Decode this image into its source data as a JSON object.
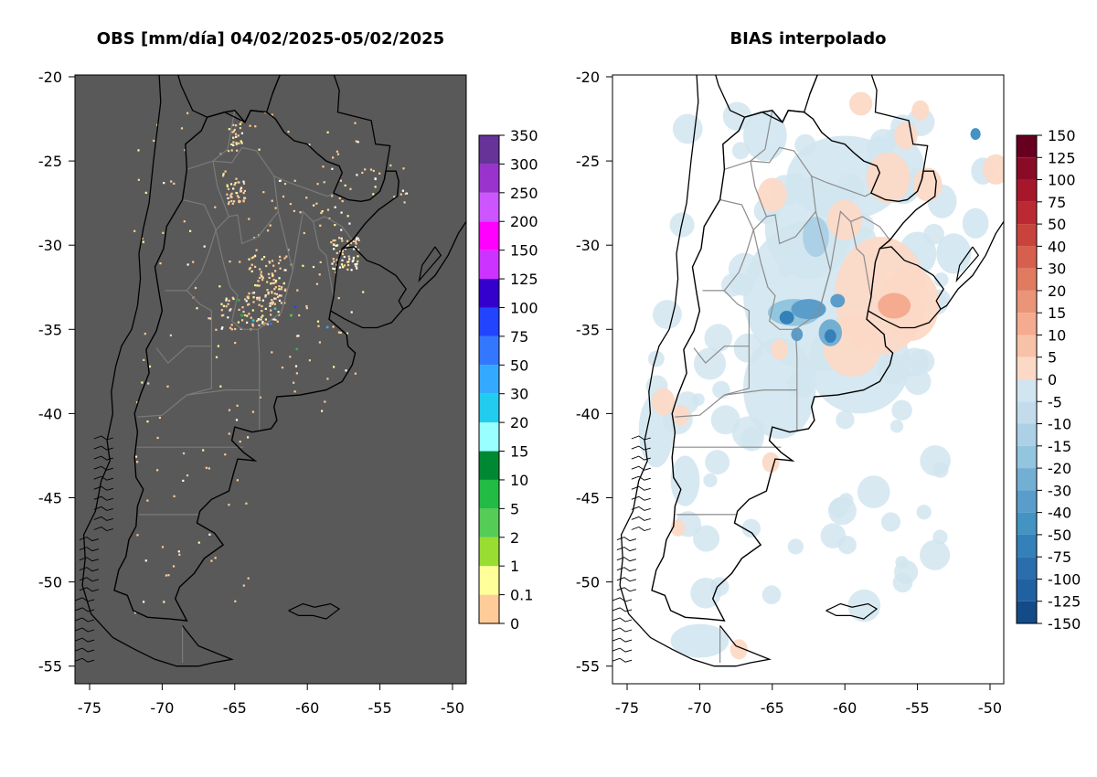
{
  "panels": [
    {
      "title": "OBS [mm/día] 04/02/2025-05/02/2025",
      "background": "#595959",
      "colorbar": {
        "labels": [
          "0",
          "0.1",
          "1",
          "2",
          "5",
          "10",
          "15",
          "20",
          "30",
          "50",
          "75",
          "100",
          "125",
          "150",
          "200",
          "250",
          "300",
          "350"
        ],
        "colors": [
          "#ffcc99",
          "#ffff99",
          "#99dd33",
          "#55cc55",
          "#22bb44",
          "#008833",
          "#99ffff",
          "#22ccee",
          "#33aaff",
          "#3377ff",
          "#2244ff",
          "#3300cc",
          "#cc33ff",
          "#ff00ff",
          "#cc55ff",
          "#9933cc",
          "#663399"
        ]
      }
    },
    {
      "title": "BIAS interpolado",
      "background": "#ffffff",
      "colorbar": {
        "labels": [
          "150",
          "125",
          "100",
          "75",
          "50",
          "40",
          "30",
          "20",
          "15",
          "10",
          "5",
          "0",
          "-5",
          "-10",
          "-15",
          "-20",
          "-30",
          "-40",
          "-50",
          "-75",
          "-100",
          "-125",
          "-150"
        ],
        "colors": [
          "#67001f",
          "#8a0b25",
          "#a7172b",
          "#bb2a33",
          "#c8433c",
          "#d6604d",
          "#e07b60",
          "#ea9478",
          "#f4ab8f",
          "#f8c2a8",
          "#fcd9c6",
          "#d1e5f0",
          "#c2dcec",
          "#acd0e6",
          "#92c5de",
          "#73afd3",
          "#5a9dca",
          "#4393c3",
          "#3480b9",
          "#2b6eae",
          "#2160a1",
          "#124b87",
          "#053061"
        ]
      }
    }
  ],
  "axes": {
    "lon_ticks": [
      "-75",
      "-70",
      "-65",
      "-60",
      "-55",
      "-50"
    ],
    "lat_ticks": [
      "-20",
      "-25",
      "-30",
      "-35",
      "-40",
      "-45",
      "-50",
      "-55"
    ]
  }
}
